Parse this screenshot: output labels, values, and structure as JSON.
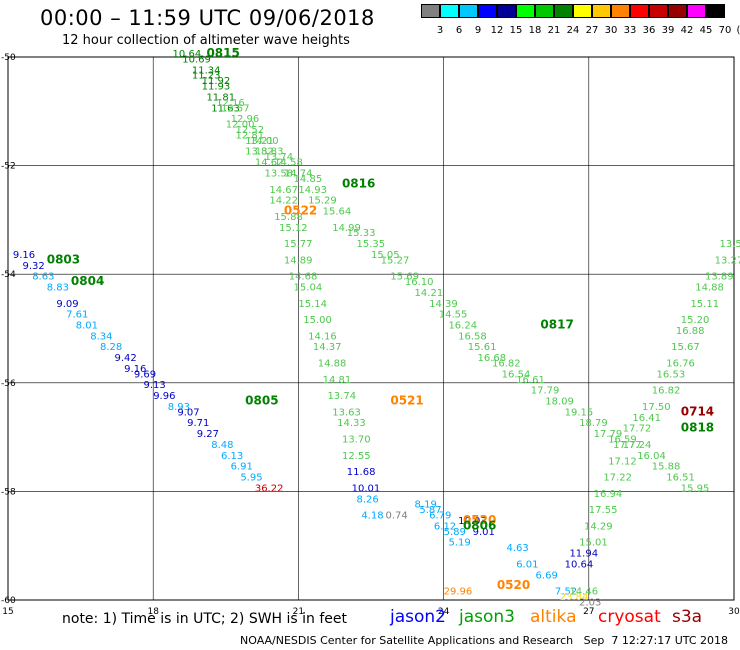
{
  "header": {
    "title": "00:00 – 11:59 UTC 09/06/2018",
    "subtitle": "12 hour collection of altimeter wave heights"
  },
  "colorbar": {
    "colors": [
      "#808080",
      "#00ffff",
      "#00c8ff",
      "#0000ff",
      "#000096",
      "#00ff00",
      "#00c800",
      "#008200",
      "#ffff00",
      "#ffc800",
      "#ff8200",
      "#ff0000",
      "#c80000",
      "#960000",
      "#ff00ff",
      "#000000"
    ],
    "labels": [
      "3",
      "6",
      "9",
      "12",
      "15",
      "18",
      "21",
      "24",
      "27",
      "30",
      "33",
      "36",
      "39",
      "42",
      "45",
      "70",
      "(ft)"
    ]
  },
  "axes": {
    "x_ticks": [
      "15",
      "18",
      "21",
      "24",
      "27",
      "30"
    ],
    "y_ticks": [
      "-50",
      "-52",
      "-54",
      "-56",
      "-58",
      "-60"
    ]
  },
  "map_labels": [
    {
      "text": "0815",
      "lon": 19.1,
      "lat": -50.0,
      "color": "#008200",
      "bold": true
    },
    {
      "text": "0816",
      "lon": 21.9,
      "lat": -52.4,
      "color": "#008200",
      "bold": true
    },
    {
      "text": "0522",
      "lon": 20.7,
      "lat": -52.9,
      "color": "#ff8200",
      "bold": true
    },
    {
      "text": "0803",
      "lon": 15.8,
      "lat": -53.8,
      "color": "#008200",
      "bold": true
    },
    {
      "text": "0804",
      "lon": 16.3,
      "lat": -54.2,
      "color": "#008200",
      "bold": true
    },
    {
      "text": "0817",
      "lon": 26.0,
      "lat": -55.0,
      "color": "#008200",
      "bold": true
    },
    {
      "text": "0805",
      "lon": 19.9,
      "lat": -56.4,
      "color": "#008200",
      "bold": true
    },
    {
      "text": "0521",
      "lon": 22.9,
      "lat": -56.4,
      "color": "#ff8200",
      "bold": true
    },
    {
      "text": "0714",
      "lon": 28.9,
      "lat": -56.6,
      "color": "#960000",
      "bold": true
    },
    {
      "text": "0818",
      "lon": 28.9,
      "lat": -56.9,
      "color": "#008200",
      "bold": true
    },
    {
      "text": "0520",
      "lon": 24.4,
      "lat": -58.6,
      "color": "#ff8200",
      "bold": true
    },
    {
      "text": "0806",
      "lon": 24.4,
      "lat": -58.7,
      "color": "#008200",
      "bold": true
    },
    {
      "text": "0520",
      "lon": 25.1,
      "lat": -59.8,
      "color": "#ff8200",
      "bold": true
    }
  ],
  "tracks": [
    {
      "color": "#008200",
      "pts": [
        [
          18.4,
          -50.0,
          "10.64"
        ],
        [
          18.6,
          -50.1,
          "10.69"
        ],
        [
          18.8,
          -50.3,
          "11.34"
        ],
        [
          18.8,
          -50.4,
          "11.23"
        ],
        [
          19.0,
          -50.5,
          "11.92"
        ],
        [
          19.0,
          -50.6,
          "11.93"
        ],
        [
          19.1,
          -50.8,
          "11.81"
        ],
        [
          19.2,
          -51.0,
          "11.63"
        ]
      ]
    },
    {
      "color": "#4ec94e",
      "pts": [
        [
          19.3,
          -50.9,
          "12.16"
        ],
        [
          19.4,
          -51.0,
          "12.57"
        ],
        [
          19.6,
          -51.2,
          "12.96"
        ],
        [
          19.7,
          -51.4,
          "12.52"
        ],
        [
          19.9,
          -51.6,
          "13.21"
        ],
        [
          20.0,
          -51.6,
          "14.00"
        ],
        [
          20.1,
          -51.8,
          "13.83"
        ],
        [
          20.3,
          -51.9,
          "13.74"
        ],
        [
          20.5,
          -52.0,
          "14.58"
        ],
        [
          20.7,
          -52.2,
          "14.74"
        ],
        [
          20.9,
          -52.3,
          "14.85"
        ],
        [
          21.0,
          -52.5,
          "14.93"
        ],
        [
          21.2,
          -52.7,
          "15.29"
        ],
        [
          21.5,
          -52.9,
          "15.64"
        ],
        [
          21.7,
          -53.2,
          "14.99"
        ],
        [
          22.0,
          -53.3,
          "15.33"
        ],
        [
          22.2,
          -53.5,
          "15.35"
        ],
        [
          22.5,
          -53.7,
          "15.05"
        ],
        [
          22.7,
          -53.8,
          "15.27"
        ],
        [
          22.9,
          -54.1,
          "15.69"
        ],
        [
          23.2,
          -54.2,
          "16.10"
        ],
        [
          23.4,
          -54.4,
          "14.21"
        ],
        [
          23.7,
          -54.6,
          "14.39"
        ],
        [
          23.9,
          -54.8,
          "14.55"
        ],
        [
          24.1,
          -55.0,
          "16.24"
        ],
        [
          24.3,
          -55.2,
          "16.58"
        ],
        [
          24.5,
          -55.4,
          "15.61"
        ],
        [
          24.7,
          -55.6,
          "16.68"
        ],
        [
          25.0,
          -55.7,
          "16.82"
        ],
        [
          25.2,
          -55.9,
          "16.54"
        ],
        [
          25.5,
          -56.0,
          "16.61"
        ],
        [
          25.8,
          -56.2,
          "17.79"
        ],
        [
          26.1,
          -56.4,
          "18.09"
        ]
      ]
    },
    {
      "color": "#4ec94e",
      "pts": [
        [
          19.5,
          -51.3,
          "12.00"
        ],
        [
          19.7,
          -51.5,
          "12.81"
        ],
        [
          19.9,
          -51.8,
          "13.82"
        ],
        [
          20.1,
          -52.0,
          "14.62"
        ],
        [
          20.3,
          -52.2,
          "13.58"
        ],
        [
          20.4,
          -52.5,
          "14.67"
        ],
        [
          20.4,
          -52.7,
          "14.22"
        ],
        [
          20.5,
          -53.0,
          "15.88"
        ],
        [
          20.6,
          -53.2,
          "15.12"
        ],
        [
          20.7,
          -53.5,
          "15.77"
        ],
        [
          20.7,
          -53.8,
          "14.89"
        ],
        [
          20.8,
          -54.1,
          "14.68"
        ],
        [
          20.9,
          -54.3,
          "15.04"
        ],
        [
          21.0,
          -54.6,
          "15.14"
        ],
        [
          21.1,
          -54.9,
          "15.00"
        ],
        [
          21.2,
          -55.2,
          "14.16"
        ],
        [
          21.3,
          -55.4,
          "14.37"
        ],
        [
          21.4,
          -55.7,
          "14.88"
        ],
        [
          21.5,
          -56.0,
          "14.81"
        ],
        [
          21.6,
          -56.3,
          "13.74"
        ],
        [
          21.7,
          -56.6,
          "13.63"
        ],
        [
          21.8,
          -56.8,
          "14.33"
        ],
        [
          21.9,
          -57.1,
          "13.70"
        ],
        [
          21.9,
          -57.4,
          "12.55"
        ]
      ]
    },
    {
      "color": "#0000c8",
      "pts": [
        [
          22.0,
          -57.7,
          "11.68"
        ],
        [
          22.1,
          -58.0,
          "10.01"
        ]
      ]
    },
    {
      "color": "#00aaff",
      "pts": [
        [
          22.2,
          -58.2,
          "8.26"
        ],
        [
          22.3,
          -58.5,
          "4.18"
        ]
      ]
    },
    {
      "color": "#0000c8",
      "pts": [
        [
          15.1,
          -53.7,
          "9.16"
        ],
        [
          15.3,
          -53.9,
          "9.32"
        ]
      ]
    },
    {
      "color": "#00aaff",
      "pts": [
        [
          15.5,
          -54.1,
          "8.63"
        ],
        [
          15.8,
          -54.3,
          "8.83"
        ]
      ]
    },
    {
      "color": "#0000c8",
      "pts": [
        [
          16.0,
          -54.6,
          "9.09"
        ]
      ]
    },
    {
      "color": "#00aaff",
      "pts": [
        [
          16.2,
          -54.8,
          "7.61"
        ],
        [
          16.4,
          -55.0,
          "8.01"
        ],
        [
          16.7,
          -55.2,
          "8.34"
        ],
        [
          16.9,
          -55.4,
          "8.28"
        ]
      ]
    },
    {
      "color": "#0000c8",
      "pts": [
        [
          17.2,
          -55.6,
          "9.42"
        ],
        [
          17.4,
          -55.8,
          "9.16"
        ],
        [
          17.6,
          -55.9,
          "9.69"
        ],
        [
          17.8,
          -56.1,
          "9.13"
        ],
        [
          18.0,
          -56.3,
          "9.96"
        ]
      ]
    },
    {
      "color": "#00aaff",
      "pts": [
        [
          18.3,
          -56.5,
          "8.93"
        ]
      ]
    },
    {
      "color": "#0000c8",
      "pts": [
        [
          18.5,
          -56.6,
          "9.07"
        ],
        [
          18.7,
          -56.8,
          "9.71"
        ],
        [
          18.9,
          -57.0,
          "9.27"
        ]
      ]
    },
    {
      "color": "#00aaff",
      "pts": [
        [
          19.2,
          -57.2,
          "8.48"
        ],
        [
          19.4,
          -57.4,
          "6.13"
        ],
        [
          19.6,
          -57.6,
          "6.91"
        ],
        [
          19.8,
          -57.8,
          "5.95"
        ]
      ]
    },
    {
      "color": "#c80000",
      "pts": [
        [
          20.1,
          -58.0,
          "36.22"
        ]
      ]
    },
    {
      "color": "#808080",
      "pts": [
        [
          22.8,
          -58.5,
          "0.74"
        ]
      ]
    },
    {
      "color": "#00aaff",
      "pts": [
        [
          23.4,
          -58.3,
          "8.19"
        ],
        [
          23.5,
          -58.4,
          "5.87"
        ],
        [
          23.7,
          -58.5,
          "6.79"
        ],
        [
          23.8,
          -58.7,
          "6.12"
        ],
        [
          24.0,
          -58.8,
          "5.89"
        ],
        [
          24.1,
          -59.0,
          "5.19"
        ],
        [
          25.3,
          -59.1,
          "4.63"
        ],
        [
          25.5,
          -59.4,
          "6.01"
        ],
        [
          25.9,
          -59.6,
          "6.69"
        ],
        [
          26.3,
          -59.9,
          "7.52"
        ]
      ]
    },
    {
      "color": "#0000c8",
      "pts": [
        [
          24.3,
          -58.6,
          "10.03"
        ],
        [
          24.6,
          -58.8,
          "9.01"
        ],
        [
          26.5,
          -59.4,
          "10.64"
        ],
        [
          26.6,
          -59.2,
          "11.94"
        ]
      ]
    },
    {
      "color": "#4ec94e",
      "pts": [
        [
          26.6,
          -59.9,
          "14.46"
        ],
        [
          26.8,
          -59.0,
          "15.01"
        ],
        [
          26.9,
          -58.7,
          "14.29"
        ],
        [
          27.0,
          -58.4,
          "17.55"
        ],
        [
          27.1,
          -58.1,
          "16.94"
        ],
        [
          27.3,
          -57.8,
          "17.22"
        ],
        [
          27.4,
          -57.5,
          "17.12"
        ],
        [
          27.5,
          -57.2,
          "17.77"
        ],
        [
          27.7,
          -56.9,
          "17.72"
        ],
        [
          27.9,
          -56.7,
          "16.41"
        ],
        [
          28.1,
          -56.5,
          "17.50"
        ],
        [
          28.3,
          -56.2,
          "16.82"
        ],
        [
          28.4,
          -55.9,
          "16.53"
        ],
        [
          28.6,
          -55.7,
          "16.76"
        ],
        [
          28.7,
          -55.4,
          "15.67"
        ],
        [
          28.8,
          -55.1,
          "16.88"
        ],
        [
          28.9,
          -54.9,
          "15.20"
        ],
        [
          29.1,
          -54.6,
          "15.11"
        ],
        [
          29.2,
          -54.3,
          "14.88"
        ],
        [
          29.4,
          -54.1,
          "13.89"
        ],
        [
          29.6,
          -53.8,
          "13.27"
        ],
        [
          29.7,
          -53.5,
          "13.59"
        ]
      ]
    },
    {
      "color": "#4ec94e",
      "pts": [
        [
          26.5,
          -56.6,
          "19.15"
        ],
        [
          26.8,
          -56.8,
          "18.79"
        ],
        [
          27.1,
          -57.0,
          "17.79"
        ],
        [
          27.4,
          -57.1,
          "16.59"
        ],
        [
          27.7,
          -57.2,
          "17.24"
        ],
        [
          28.0,
          -57.4,
          "16.04"
        ],
        [
          28.3,
          -57.6,
          "15.88"
        ],
        [
          28.6,
          -57.8,
          "16.51"
        ],
        [
          28.9,
          -58.0,
          "15.95"
        ]
      ]
    },
    {
      "color": "#ffd800",
      "pts": [
        [
          26.4,
          -60.0,
          "23.84"
        ]
      ]
    },
    {
      "color": "#ff8200",
      "pts": [
        [
          24.0,
          -59.9,
          "29.96"
        ]
      ]
    },
    {
      "color": "#808080",
      "pts": [
        [
          26.8,
          -60.1,
          "2.03"
        ]
      ]
    }
  ],
  "note": "note: 1) Time is in UTC; 2) SWH is in feet",
  "legend": [
    {
      "label": "jason2",
      "color": "#0000ff",
      "x": 390
    },
    {
      "label": "jason3",
      "color": "#00a000",
      "x": 459
    },
    {
      "label": "altika",
      "color": "#ff8200",
      "x": 530
    },
    {
      "label": "cryosat",
      "color": "#ff0000",
      "x": 598
    },
    {
      "label": "s3a",
      "color": "#960000",
      "x": 672
    }
  ],
  "credit": "NOAA/NESDIS Center for Satellite Applications and Research   Sep  7 12:27:17 UTC 2018"
}
